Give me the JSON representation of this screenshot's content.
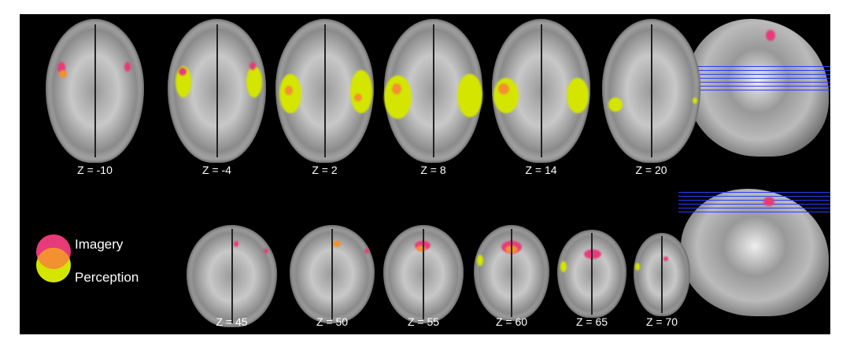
{
  "colors": {
    "imagery": "#e83a78",
    "perception": "#d4e600",
    "overlap": "#f39030",
    "background": "#000000"
  },
  "top_row": [
    {
      "label": "Z = -10"
    },
    {
      "label": "Z = -4"
    },
    {
      "label": "Z = 2"
    },
    {
      "label": "Z = 8"
    },
    {
      "label": "Z = 14"
    },
    {
      "label": "Z = 20"
    }
  ],
  "bottom_row": [
    {
      "label": "Z = 45"
    },
    {
      "label": "Z = 50"
    },
    {
      "label": "Z = 55"
    },
    {
      "label": "Z = 60"
    },
    {
      "label": "Z = 65"
    },
    {
      "label": "Z = 70"
    }
  ],
  "legend": {
    "imagery": "Imagery",
    "perception": "Perception"
  }
}
